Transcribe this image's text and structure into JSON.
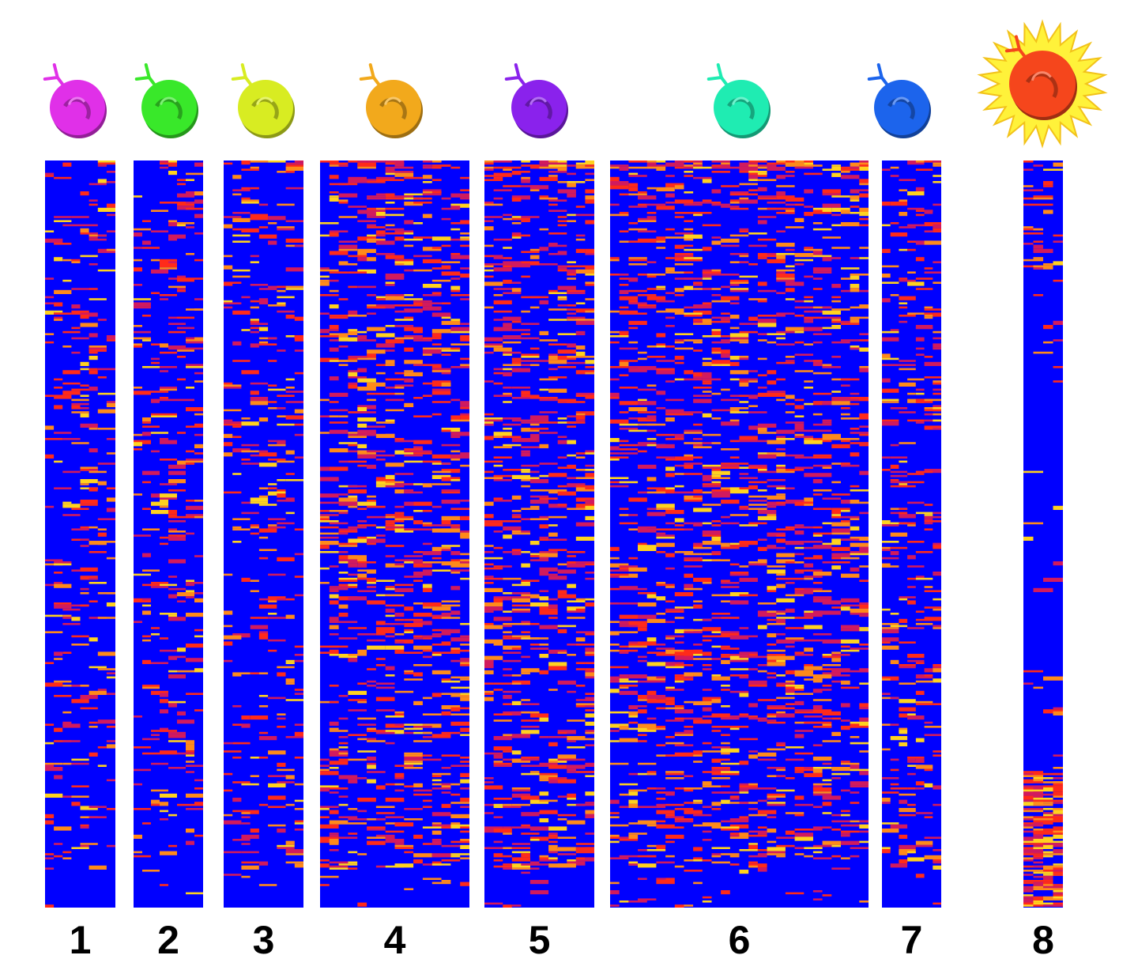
{
  "chart_data": {
    "type": "heatmap",
    "title": "",
    "xlabel": "",
    "ylabel": "",
    "colorscale": [
      "#0000ff",
      "#d11a5e",
      "#ff2a1a",
      "#ff8a1a",
      "#ffd21f"
    ],
    "groups": [
      {
        "label": "1",
        "cell_color": "#e030e8",
        "columns": 8,
        "pattern": "sparse"
      },
      {
        "label": "2",
        "cell_color": "#39e82a",
        "columns": 8,
        "pattern": "sparse"
      },
      {
        "label": "3",
        "cell_color": "#d8ec22",
        "columns": 9,
        "pattern": "sparse"
      },
      {
        "label": "4",
        "cell_color": "#f2a91c",
        "columns": 16,
        "pattern": "dense"
      },
      {
        "label": "5",
        "cell_color": "#8a22ec",
        "columns": 12,
        "pattern": "dense"
      },
      {
        "label": "6",
        "cell_color": "#1fecb2",
        "columns": 28,
        "pattern": "dense"
      },
      {
        "label": "7",
        "cell_color": "#1c64ec",
        "columns": 7,
        "pattern": "medium"
      },
      {
        "label": "8",
        "cell_color": "#f5461c",
        "columns": 4,
        "pattern": "bottom-heavy",
        "activated": true
      }
    ]
  }
}
